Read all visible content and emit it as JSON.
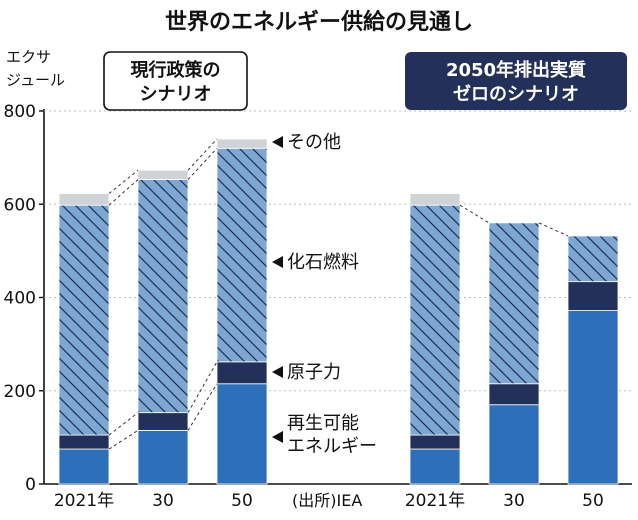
{
  "chart_data": {
    "type": "bar",
    "stacked": true,
    "title": "世界のエネルギー供給の見通し",
    "unit_line1": "エクサ",
    "unit_line2": "ジュール",
    "ylim": [
      0,
      800
    ],
    "yticks": [
      0,
      200,
      400,
      600,
      800
    ],
    "source": "(出所)IEA",
    "colors": {
      "renewable": "#2e6fba",
      "nuclear": "#23305a",
      "fossil": "#7ea6d2",
      "other": "#d0d3d6",
      "hatch": "#1c2f52",
      "label_dark_bg": "#23305a"
    },
    "layer_labels": {
      "other": "その他",
      "fossil": "化石燃料",
      "nuclear": "原子力",
      "renewable_line1": "再生可能",
      "renewable_line2": "エネルギー"
    },
    "scenarios": [
      {
        "label_line1": "現行政策の",
        "label_line2": "シナリオ",
        "style": "outline",
        "categories": [
          "2021年",
          "30",
          "50"
        ],
        "series": [
          {
            "key": "renewable",
            "values": [
              75,
              115,
              215
            ]
          },
          {
            "key": "nuclear",
            "values": [
              30,
              38,
              47
            ]
          },
          {
            "key": "fossil",
            "values": [
              493,
              500,
              458
            ]
          },
          {
            "key": "other",
            "values": [
              25,
              20,
              20
            ]
          }
        ]
      },
      {
        "label_line1": "2050年排出実質",
        "label_line2": "ゼロのシナリオ",
        "style": "filled",
        "categories": [
          "2021年",
          "30",
          "50"
        ],
        "series": [
          {
            "key": "renewable",
            "values": [
              75,
              170,
              372
            ]
          },
          {
            "key": "nuclear",
            "values": [
              30,
              45,
              62
            ]
          },
          {
            "key": "fossil",
            "values": [
              493,
              345,
              98
            ]
          },
          {
            "key": "other",
            "values": [
              25,
              0,
              0
            ]
          }
        ]
      }
    ]
  }
}
